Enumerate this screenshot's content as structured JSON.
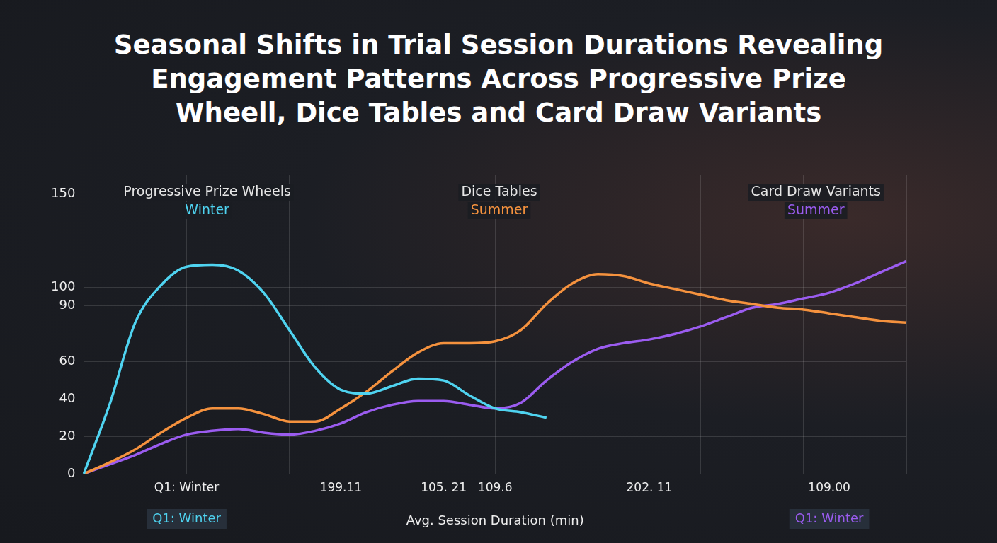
{
  "chart_data": {
    "type": "line",
    "title": "Seasonal Shifts in Trial Session Durations Revealing Engagement Patterns Across Progressive Prize Wheell, Dice Tables and Card Draw Variants",
    "xlabel": "Avg. Session Duration (min)",
    "categories": [
      null,
      null,
      null,
      null,
      "Q1: Winter",
      null,
      null,
      null,
      null,
      null,
      "199.11",
      null,
      null,
      null,
      "105. 21",
      null,
      "109.6",
      null,
      null,
      null,
      null,
      null,
      "202. 11",
      null,
      null,
      null,
      null,
      null,
      null,
      "109.00",
      null,
      null,
      null
    ],
    "series": [
      {
        "name": "Progressive Prize Wheels",
        "color": "#4fd3f0",
        "values": [
          0,
          37,
          81,
          101,
          111,
          112,
          109,
          97,
          77,
          57,
          45,
          43,
          47,
          51,
          50,
          42,
          35,
          33,
          30,
          null,
          null,
          null,
          null,
          null,
          null,
          null,
          null,
          null,
          null,
          null,
          null,
          null,
          null
        ]
      },
      {
        "name": "Dice Tables",
        "color": "#f5923e",
        "values": [
          0,
          6,
          13,
          22,
          30,
          35,
          35,
          32,
          28,
          28,
          35,
          44,
          55,
          65,
          70,
          70,
          71,
          77,
          91,
          102,
          107,
          106,
          102,
          99,
          96,
          93,
          91,
          89,
          88,
          86,
          84,
          82,
          81
        ]
      },
      {
        "name": "Card Draw Variants",
        "color": "#9b5cf0",
        "values": [
          0,
          5,
          10,
          16,
          21,
          23,
          24,
          22,
          21,
          23,
          27,
          33,
          37,
          39,
          39,
          37,
          35,
          38,
          50,
          60,
          67,
          70,
          72,
          75,
          79,
          84,
          89,
          91,
          94,
          97,
          102,
          108,
          114
        ]
      }
    ],
    "annotations": [
      {
        "text": "Winter",
        "series": "Progressive Prize Wheels"
      },
      {
        "text": "Summer",
        "series": "Dice Tables"
      },
      {
        "text": "Summer",
        "series": "Card Draw Variants"
      },
      {
        "text": "Q1: Winter",
        "color": "#4fd3f0"
      },
      {
        "text": "Q1: Winter",
        "color": "#9b5cf0"
      }
    ],
    "ylim": [
      0,
      160
    ],
    "yticks": [
      0,
      20,
      40,
      60,
      90,
      150,
      100
    ],
    "grid": true,
    "legend": "none",
    "tick_labels": true
  }
}
